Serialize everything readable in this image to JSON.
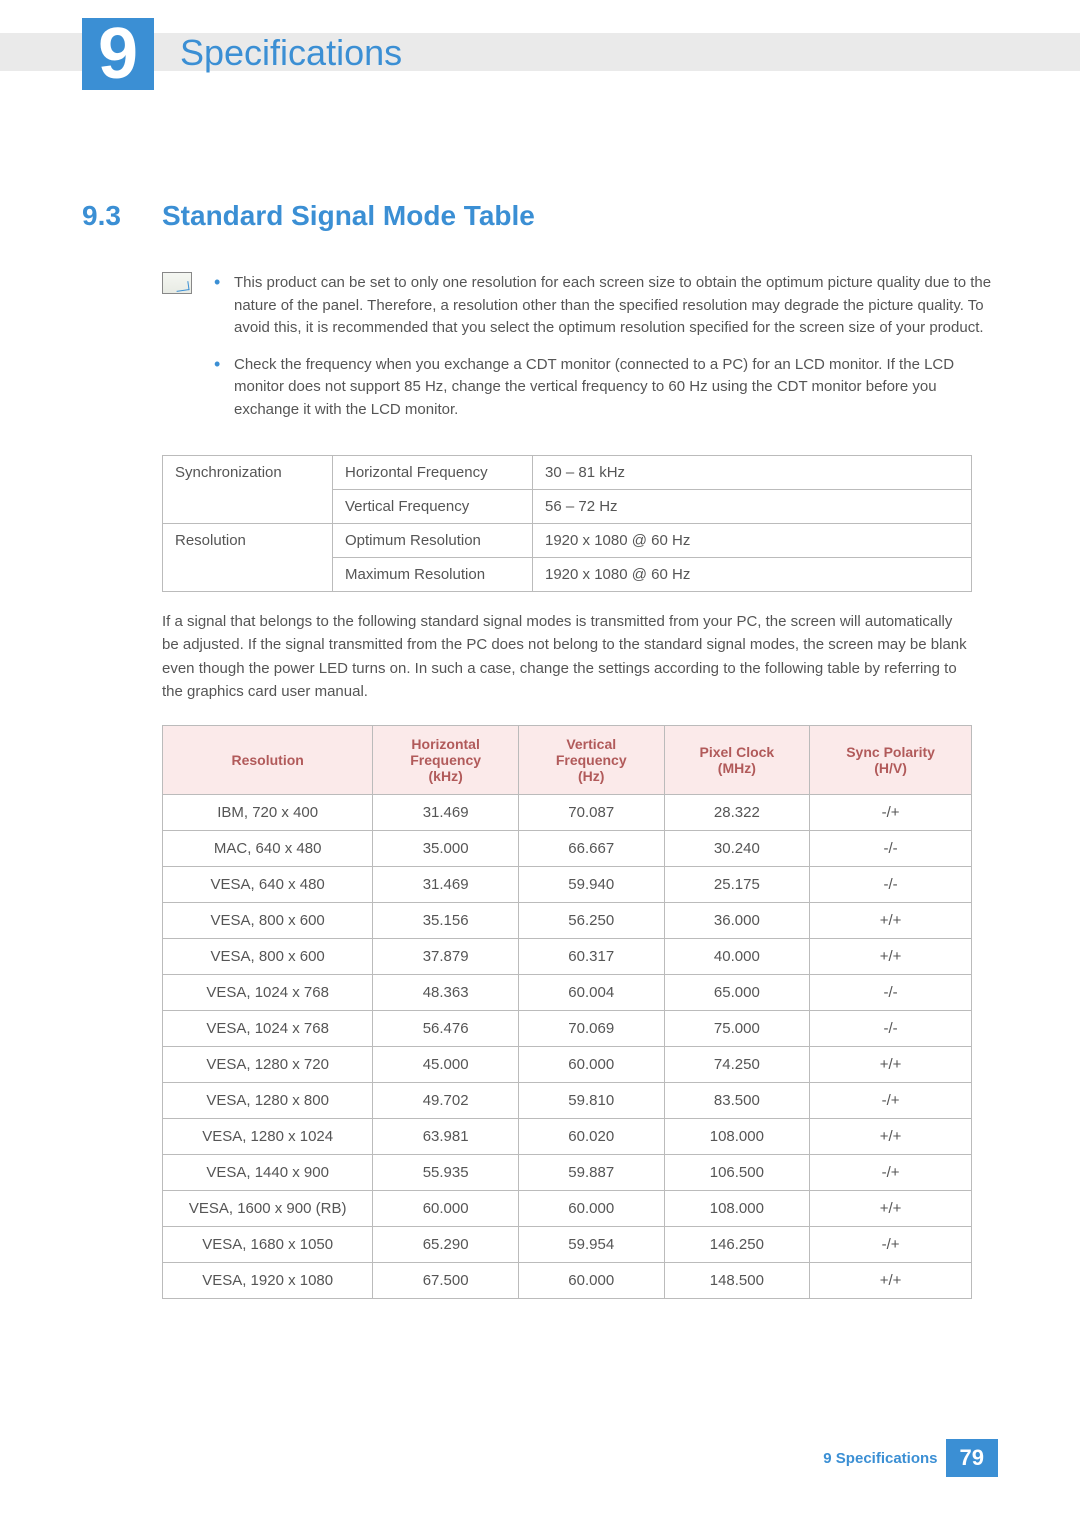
{
  "header": {
    "chapter_number": "9",
    "chapter_title": "Specifications"
  },
  "section": {
    "number": "9.3",
    "title": "Standard Signal Mode Table"
  },
  "notes": [
    "This product can be set to only one resolution for each screen size to obtain the optimum picture quality due to the nature of the panel. Therefore, a resolution other than the specified resolution may degrade the picture quality. To avoid this, it is recommended that you select the optimum resolution specified for the screen size of your product.",
    "Check the frequency when you exchange a CDT monitor (connected to a PC) for an LCD monitor. If the LCD monitor does not support 85 Hz, change the vertical frequency to 60 Hz using the CDT monitor before you exchange it with the LCD monitor."
  ],
  "spec_table": {
    "rows": [
      {
        "group": "Synchronization",
        "label": "Horizontal Frequency",
        "value": "30 – 81 kHz",
        "rowspan": 2
      },
      {
        "group": "",
        "label": "Vertical Frequency",
        "value": "56 – 72 Hz",
        "rowspan": 0
      },
      {
        "group": "Resolution",
        "label": "Optimum Resolution",
        "value": "1920 x 1080 @ 60 Hz",
        "rowspan": 2
      },
      {
        "group": "",
        "label": "Maximum Resolution",
        "value": "1920 x 1080 @ 60 Hz",
        "rowspan": 0
      }
    ]
  },
  "info_paragraph": "If a signal that belongs to the following standard signal modes is transmitted from your PC, the screen will automatically be adjusted. If the signal transmitted from the PC does not belong to the standard signal modes, the screen may be blank even though the power LED turns on. In such a case, change the settings according to the following table by referring to the graphics card user manual.",
  "mode_table": {
    "columns": [
      "Resolution",
      "Horizontal Frequency (kHz)",
      "Vertical Frequency (Hz)",
      "Pixel Clock (MHz)",
      "Sync Polarity (H/V)"
    ],
    "rows": [
      [
        "IBM, 720 x 400",
        "31.469",
        "70.087",
        "28.322",
        "-/+"
      ],
      [
        "MAC, 640 x 480",
        "35.000",
        "66.667",
        "30.240",
        "-/-"
      ],
      [
        "VESA, 640 x 480",
        "31.469",
        "59.940",
        "25.175",
        "-/-"
      ],
      [
        "VESA, 800 x 600",
        "35.156",
        "56.250",
        "36.000",
        "+/+"
      ],
      [
        "VESA, 800 x 600",
        "37.879",
        "60.317",
        "40.000",
        "+/+"
      ],
      [
        "VESA, 1024 x 768",
        "48.363",
        "60.004",
        "65.000",
        "-/-"
      ],
      [
        "VESA, 1024 x 768",
        "56.476",
        "70.069",
        "75.000",
        "-/-"
      ],
      [
        "VESA, 1280 x 720",
        "45.000",
        "60.000",
        "74.250",
        "+/+"
      ],
      [
        "VESA, 1280 x 800",
        "49.702",
        "59.810",
        "83.500",
        "-/+"
      ],
      [
        "VESA, 1280 x 1024",
        "63.981",
        "60.020",
        "108.000",
        "+/+"
      ],
      [
        "VESA, 1440 x 900",
        "55.935",
        "59.887",
        "106.500",
        "-/+"
      ],
      [
        "VESA, 1600 x 900 (RB)",
        "60.000",
        "60.000",
        "108.000",
        "+/+"
      ],
      [
        "VESA, 1680 x 1050",
        "65.290",
        "59.954",
        "146.250",
        "-/+"
      ],
      [
        "VESA, 1920 x 1080",
        "67.500",
        "60.000",
        "148.500",
        "+/+"
      ]
    ]
  },
  "footer": {
    "label": "9 Specifications",
    "page": "79"
  },
  "colors": {
    "accent": "#3b8fd4",
    "header_bg": "#fbeaea",
    "header_text": "#b15a5a",
    "border": "#bbbbbb",
    "text": "#555555"
  }
}
